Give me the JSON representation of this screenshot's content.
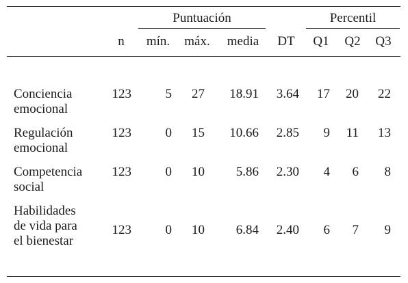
{
  "header": {
    "group1": "Puntuación",
    "group2": "Percentil",
    "columns": [
      "n",
      "mín.",
      "máx.",
      "media",
      "DT",
      "Q1",
      "Q2",
      "Q3"
    ]
  },
  "rows": [
    {
      "label": [
        "Conciencia",
        "emocional"
      ],
      "values": [
        "123",
        "5",
        "27",
        "18.91",
        "3.64",
        "17",
        "20",
        "22"
      ]
    },
    {
      "label": [
        "Regulación",
        "emocional"
      ],
      "values": [
        "123",
        "0",
        "15",
        "10.66",
        "2.85",
        "9",
        "11",
        "13"
      ]
    },
    {
      "label": [
        "Competencia",
        "social"
      ],
      "values": [
        "123",
        "0",
        "10",
        "5.86",
        "2.30",
        "4",
        "6",
        "8"
      ]
    },
    {
      "label": [
        "Habilidades",
        "de vida para",
        "el bienestar"
      ],
      "values": [
        "123",
        "0",
        "10",
        "6.84",
        "2.40",
        "6",
        "7",
        "9"
      ]
    }
  ]
}
